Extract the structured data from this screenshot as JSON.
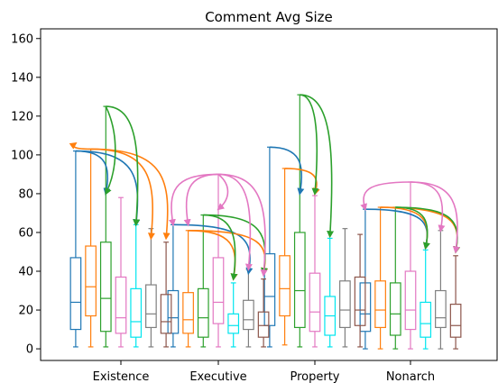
{
  "chart_data": {
    "type": "box",
    "title": "Comment Avg Size",
    "xlabel": "",
    "ylabel": "",
    "ylim": [
      -6,
      165
    ],
    "yticks": [
      0,
      20,
      40,
      60,
      80,
      100,
      120,
      140,
      160
    ],
    "categories": [
      "Existence",
      "Executive",
      "Property",
      "Nonarch"
    ],
    "series": [
      {
        "color": "#1f77b4",
        "boxes": [
          {
            "whislo": 1,
            "q1": 10,
            "med": 24,
            "q3": 47,
            "whishi": 102
          },
          {
            "whislo": 1,
            "q1": 8,
            "med": 16,
            "q3": 30,
            "whishi": 64
          },
          {
            "whislo": 1,
            "q1": 12,
            "med": 27,
            "q3": 49,
            "whishi": 104
          },
          {
            "whislo": 0,
            "q1": 9,
            "med": 18,
            "q3": 34,
            "whishi": 72
          }
        ]
      },
      {
        "color": "#ff7f0e",
        "boxes": [
          {
            "whislo": 1,
            "q1": 17,
            "med": 32,
            "q3": 53,
            "whishi": 103
          },
          {
            "whislo": 1,
            "q1": 8,
            "med": 15,
            "q3": 29,
            "whishi": 61
          },
          {
            "whislo": 2,
            "q1": 17,
            "med": 31,
            "q3": 48,
            "whishi": 93
          },
          {
            "whislo": 0,
            "q1": 11,
            "med": 20,
            "q3": 35,
            "whishi": 73
          }
        ]
      },
      {
        "color": "#2ca02c",
        "boxes": [
          {
            "whislo": 1,
            "q1": 9,
            "med": 26,
            "q3": 55,
            "whishi": 125
          },
          {
            "whislo": 1,
            "q1": 6,
            "med": 16,
            "q3": 31,
            "whishi": 69
          },
          {
            "whislo": 1,
            "q1": 11,
            "med": 30,
            "q3": 60,
            "whishi": 131
          },
          {
            "whislo": 0,
            "q1": 7,
            "med": 18,
            "q3": 34,
            "whishi": 73
          }
        ]
      },
      {
        "color": "#e377c2",
        "boxes": [
          {
            "whislo": 1,
            "q1": 8,
            "med": 16,
            "q3": 37,
            "whishi": 78
          },
          {
            "whislo": 1,
            "q1": 13,
            "med": 24,
            "q3": 47,
            "whishi": 90
          },
          {
            "whislo": 1,
            "q1": 9,
            "med": 19,
            "q3": 39,
            "whishi": 79
          },
          {
            "whislo": 0,
            "q1": 10,
            "med": 20,
            "q3": 40,
            "whishi": 86
          }
        ]
      },
      {
        "color": "#00e5ee",
        "boxes": [
          {
            "whislo": 1,
            "q1": 6,
            "med": 14,
            "q3": 31,
            "whishi": 64
          },
          {
            "whislo": 1,
            "q1": 8,
            "med": 12,
            "q3": 18,
            "whishi": 34
          },
          {
            "whislo": 1,
            "q1": 7,
            "med": 17,
            "q3": 27,
            "whishi": 57
          },
          {
            "whislo": 0,
            "q1": 6,
            "med": 13,
            "q3": 24,
            "whishi": 51
          }
        ]
      },
      {
        "color": "#7f7f7f",
        "boxes": [
          {
            "whislo": 1,
            "q1": 11,
            "med": 18,
            "q3": 33,
            "whishi": 62
          },
          {
            "whislo": 1,
            "q1": 10,
            "med": 15,
            "q3": 25,
            "whishi": 41
          },
          {
            "whislo": 1,
            "q1": 11,
            "med": 20,
            "q3": 35,
            "whishi": 62
          },
          {
            "whislo": 0,
            "q1": 11,
            "med": 16,
            "q3": 30,
            "whishi": 61
          }
        ]
      },
      {
        "color": "#8c564b",
        "boxes": [
          {
            "whislo": 1,
            "q1": 8,
            "med": 14,
            "q3": 28,
            "whishi": 55
          },
          {
            "whislo": 1,
            "q1": 6,
            "med": 12,
            "q3": 19,
            "whishi": 36
          },
          {
            "whislo": 1,
            "q1": 12,
            "med": 20,
            "q3": 37,
            "whishi": 59
          },
          {
            "whislo": 0,
            "q1": 6,
            "med": 12,
            "q3": 23,
            "whishi": 48
          }
        ]
      }
    ],
    "annotation_arcs": [
      {
        "category": 0,
        "from_series": 0,
        "to_series": 2,
        "from_value": 102,
        "to_value": 80,
        "color": "#1f77b4"
      },
      {
        "category": 0,
        "from_series": 0,
        "to_series": 4,
        "from_value": 102,
        "to_value": 64,
        "color": "#1f77b4"
      },
      {
        "category": 0,
        "from_series": 1,
        "to_series": 0,
        "from_value": 103,
        "to_value": 106,
        "color": "#ff7f0e"
      },
      {
        "category": 0,
        "from_series": 1,
        "to_series": 5,
        "from_value": 103,
        "to_value": 57,
        "color": "#ff7f0e"
      },
      {
        "category": 0,
        "from_series": 1,
        "to_series": 6,
        "from_value": 103,
        "to_value": 57,
        "color": "#ff7f0e"
      },
      {
        "category": 0,
        "from_series": 2,
        "to_series": 2,
        "from_value": 125,
        "to_value": 80,
        "color": "#2ca02c"
      },
      {
        "category": 0,
        "from_series": 2,
        "to_series": 4,
        "from_value": 125,
        "to_value": 64,
        "color": "#2ca02c"
      },
      {
        "category": 1,
        "from_series": 0,
        "to_series": 5,
        "from_value": 64,
        "to_value": 39,
        "color": "#1f77b4"
      },
      {
        "category": 1,
        "from_series": 1,
        "to_series": 4,
        "from_value": 61,
        "to_value": 36,
        "color": "#ff7f0e"
      },
      {
        "category": 1,
        "from_series": 1,
        "to_series": 6,
        "from_value": 61,
        "to_value": 39,
        "color": "#ff7f0e"
      },
      {
        "category": 1,
        "from_series": 2,
        "to_series": 4,
        "from_value": 69,
        "to_value": 36,
        "color": "#2ca02c"
      },
      {
        "category": 1,
        "from_series": 2,
        "to_series": 6,
        "from_value": 69,
        "to_value": 39,
        "color": "#2ca02c"
      },
      {
        "category": 1,
        "from_series": 3,
        "to_series": 0,
        "from_value": 90,
        "to_value": 64,
        "color": "#e377c2"
      },
      {
        "category": 1,
        "from_series": 3,
        "to_series": 1,
        "from_value": 90,
        "to_value": 64,
        "color": "#e377c2"
      },
      {
        "category": 1,
        "from_series": 3,
        "to_series": 3,
        "from_value": 90,
        "to_value": 72,
        "color": "#e377c2"
      },
      {
        "category": 1,
        "from_series": 3,
        "to_series": 5,
        "from_value": 90,
        "to_value": 41,
        "color": "#e377c2"
      },
      {
        "category": 1,
        "from_series": 3,
        "to_series": 6,
        "from_value": 90,
        "to_value": 38,
        "color": "#e377c2"
      },
      {
        "category": 2,
        "from_series": 0,
        "to_series": 2,
        "from_value": 104,
        "to_value": 80,
        "color": "#1f77b4"
      },
      {
        "category": 2,
        "from_series": 1,
        "to_series": 3,
        "from_value": 93,
        "to_value": 80,
        "color": "#ff7f0e"
      },
      {
        "category": 2,
        "from_series": 2,
        "to_series": 3,
        "from_value": 131,
        "to_value": 80,
        "color": "#2ca02c"
      },
      {
        "category": 2,
        "from_series": 2,
        "to_series": 4,
        "from_value": 131,
        "to_value": 58,
        "color": "#2ca02c"
      },
      {
        "category": 3,
        "from_series": 0,
        "to_series": 4,
        "from_value": 72,
        "to_value": 52,
        "color": "#1f77b4"
      },
      {
        "category": 3,
        "from_series": 1,
        "to_series": 4,
        "from_value": 73,
        "to_value": 52,
        "color": "#ff7f0e"
      },
      {
        "category": 3,
        "from_series": 1,
        "to_series": 6,
        "from_value": 73,
        "to_value": 50,
        "color": "#ff7f0e"
      },
      {
        "category": 3,
        "from_series": 2,
        "to_series": 4,
        "from_value": 73,
        "to_value": 52,
        "color": "#2ca02c"
      },
      {
        "category": 3,
        "from_series": 2,
        "to_series": 6,
        "from_value": 73,
        "to_value": 50,
        "color": "#2ca02c"
      },
      {
        "category": 3,
        "from_series": 3,
        "to_series": 0,
        "from_value": 86,
        "to_value": 72,
        "color": "#e377c2"
      },
      {
        "category": 3,
        "from_series": 3,
        "to_series": 5,
        "from_value": 86,
        "to_value": 61,
        "color": "#e377c2"
      },
      {
        "category": 3,
        "from_series": 3,
        "to_series": 6,
        "from_value": 86,
        "to_value": 50,
        "color": "#e377c2"
      }
    ],
    "grid": false,
    "legend": "none"
  }
}
